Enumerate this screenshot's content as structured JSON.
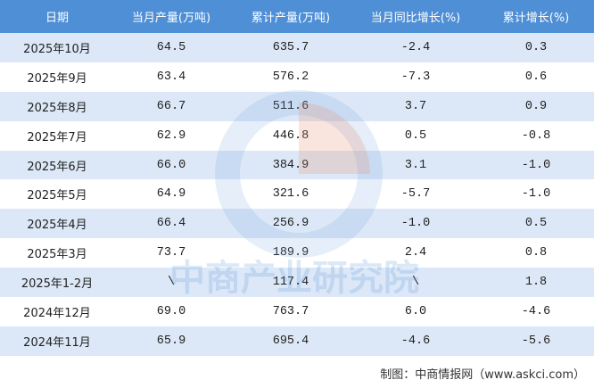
{
  "table": {
    "header": [
      "日期",
      "当月产量(万吨)",
      "累计产量(万吨)",
      "当月同比增长(%)",
      "累计增长(%)"
    ],
    "rows": [
      [
        "2025年10月",
        "64.5",
        "635.7",
        "-2.4",
        "0.3"
      ],
      [
        "2025年9月",
        "63.4",
        "576.2",
        "-7.3",
        "0.6"
      ],
      [
        "2025年8月",
        "66.7",
        "511.6",
        "3.7",
        "0.9"
      ],
      [
        "2025年7月",
        "62.9",
        "446.8",
        "0.5",
        "-0.8"
      ],
      [
        "2025年6月",
        "66.0",
        "384.9",
        "3.1",
        "-1.0"
      ],
      [
        "2025年5月",
        "64.9",
        "321.6",
        "-5.7",
        "-1.0"
      ],
      [
        "2025年4月",
        "66.4",
        "256.9",
        "-1.0",
        "0.5"
      ],
      [
        "2025年3月",
        "73.7",
        "189.9",
        "2.4",
        "0.8"
      ],
      [
        "2025年1-2月",
        "\\",
        "117.4",
        "\\",
        "1.8"
      ],
      [
        "2024年12月",
        "69.0",
        "763.7",
        "6.0",
        "-4.6"
      ],
      [
        "2024年11月",
        "65.9",
        "695.4",
        "-4.6",
        "-5.6"
      ]
    ]
  },
  "watermark": "中商产业研究院",
  "footer": "制图：中商情报网（www.askci.com）"
}
